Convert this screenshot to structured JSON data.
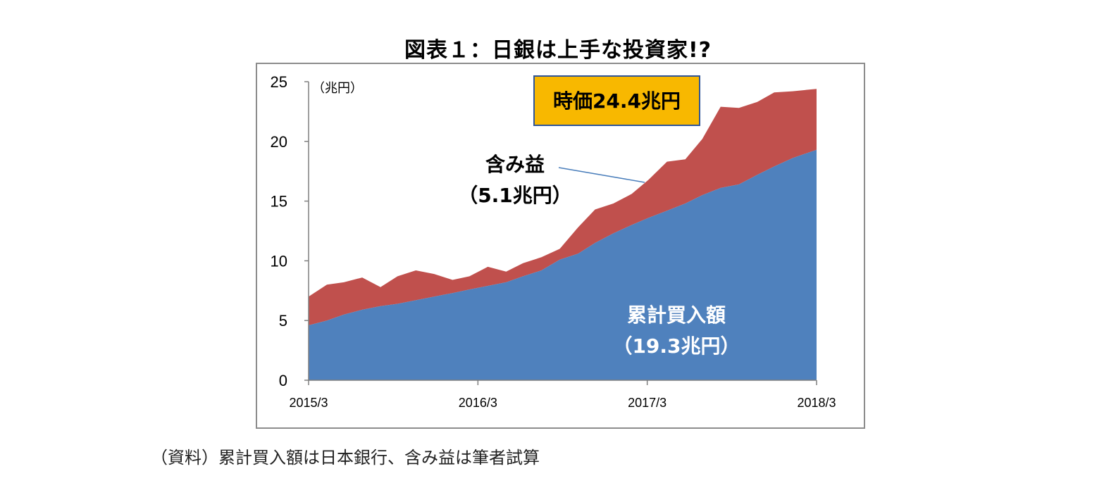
{
  "title": "図表１：日銀は上手な投資家!?",
  "source_note": "（資料）累計買入額は日本銀行、含み益は筆者試算",
  "colors": {
    "cumulative": "#4f81bd",
    "gain": "#c0504d",
    "callout_box": "#f8b800",
    "callout_box_border": "#2f5597",
    "axis": "#7f7f7f",
    "leader_line": "#4a7ebb",
    "frame": "#8c8c8c"
  },
  "annotations": {
    "market_value": "時価24.4兆円",
    "gain_label": "含み益",
    "gain_value": "（5.1兆円）",
    "cumulative_label": "累計買入額",
    "cumulative_value": "（19.3兆円）"
  },
  "chart_data": {
    "type": "area",
    "stacked": true,
    "ylabel": "（兆円）",
    "ylim": [
      0,
      25
    ],
    "yticks": [
      0,
      5,
      10,
      15,
      20,
      25
    ],
    "x_tick_labels": [
      "2015/3",
      "2016/3",
      "2017/3",
      "2018/3"
    ],
    "x_tick_positions": [
      0,
      12,
      24,
      36
    ],
    "x_start": "2015/3",
    "x_end": "2018/3",
    "legend": "none",
    "grid": false,
    "series": [
      {
        "name": "累計買入額",
        "values": [
          4.6,
          5.0,
          5.5,
          5.9,
          6.2,
          6.4,
          6.7,
          7.0,
          7.3,
          7.6,
          7.9,
          8.2,
          8.7,
          9.2,
          10.1,
          10.6,
          11.5,
          12.3,
          13.0,
          13.6,
          14.2,
          14.8,
          15.5,
          16.1,
          16.4,
          17.2,
          17.9,
          18.6,
          19.3
        ]
      },
      {
        "name": "含み益",
        "values": [
          2.4,
          3.0,
          2.7,
          2.7,
          1.6,
          2.3,
          2.5,
          1.9,
          1.1,
          1.1,
          1.6,
          0.9,
          1.1,
          1.1,
          0.9,
          2.2,
          2.8,
          2.5,
          2.6,
          3.2,
          4.1,
          3.7,
          4.7,
          6.8,
          6.4,
          6.1,
          6.2,
          5.6,
          5.1
        ]
      }
    ],
    "x": [
      0,
      1.3,
      2.5,
      3.8,
      5.1,
      6.3,
      7.6,
      8.9,
      10.2,
      11.4,
      12.7,
      14.0,
      15.2,
      16.5,
      17.8,
      19.1,
      20.3,
      21.6,
      22.9,
      24.1,
      25.4,
      26.7,
      27.9,
      29.2,
      30.5,
      31.8,
      33.0,
      34.3,
      36.0
    ]
  }
}
